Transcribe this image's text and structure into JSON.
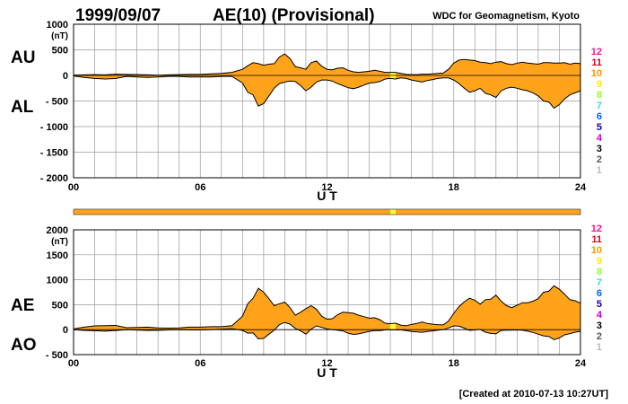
{
  "header": {
    "date": "1999/09/07",
    "title": "AE(10) (Provisional)",
    "source": "WDC for Geomagnetism, Kyoto"
  },
  "footer": {
    "created": "[Created at 2010-07-13 10:27UT]"
  },
  "colors": {
    "fill": "#ffa31a",
    "highlight": "#ffff33",
    "grid": "#9a9a9a",
    "axis": "#000000"
  },
  "station_legend": [
    {
      "label": "12",
      "color": "#ff1493"
    },
    {
      "label": "11",
      "color": "#e0001b"
    },
    {
      "label": "10",
      "color": "#ff9900"
    },
    {
      "label": "9",
      "color": "#ffee00"
    },
    {
      "label": "8",
      "color": "#99ff33"
    },
    {
      "label": "7",
      "color": "#33dddd"
    },
    {
      "label": "6",
      "color": "#0066ff"
    },
    {
      "label": "5",
      "color": "#1a00aa"
    },
    {
      "label": "4",
      "color": "#cc00cc"
    },
    {
      "label": "3",
      "color": "#000000"
    },
    {
      "label": "2",
      "color": "#555555"
    },
    {
      "label": "1",
      "color": "#bbbbbb"
    }
  ],
  "coverage_bar": {
    "highlight_hours": [
      15.0,
      15.25
    ]
  },
  "chart_data": [
    {
      "type": "area",
      "name": "AU/AL",
      "upper_label": "AU",
      "lower_label": "AL",
      "unit": "(nT)",
      "xlabel": "U T",
      "xlim": [
        0,
        24
      ],
      "ylim": [
        -2000,
        1000
      ],
      "xticks": [
        "00",
        "06",
        "12",
        "18",
        "24"
      ],
      "yticks": [
        "1000",
        "500",
        "0",
        "- 500",
        "- 1000",
        "- 1500",
        "- 2000"
      ],
      "highlight_hours": [
        15.0,
        15.25
      ],
      "x": [
        0,
        0.5,
        1,
        1.5,
        2,
        2.5,
        3,
        3.5,
        4,
        4.5,
        5,
        5.5,
        6,
        6.5,
        7,
        7.5,
        8,
        8.25,
        8.5,
        8.75,
        9,
        9.25,
        9.5,
        9.75,
        10,
        10.25,
        10.5,
        10.75,
        11,
        11.25,
        11.5,
        11.75,
        12,
        12.25,
        12.5,
        12.75,
        13,
        13.25,
        13.5,
        13.75,
        14,
        14.25,
        14.5,
        14.75,
        15,
        15.25,
        15.5,
        15.75,
        16,
        16.25,
        16.5,
        16.75,
        17,
        17.25,
        17.5,
        17.75,
        18,
        18.25,
        18.5,
        18.75,
        19,
        19.25,
        19.5,
        19.75,
        20,
        20.25,
        20.5,
        20.75,
        21,
        21.25,
        21.5,
        21.75,
        22,
        22.25,
        22.5,
        22.75,
        23,
        23.25,
        23.5,
        23.75,
        24
      ],
      "series": [
        {
          "name": "AU",
          "values": [
            5,
            10,
            15,
            10,
            25,
            20,
            15,
            10,
            5,
            10,
            15,
            20,
            20,
            30,
            40,
            60,
            120,
            190,
            250,
            230,
            200,
            220,
            230,
            360,
            420,
            330,
            170,
            150,
            120,
            250,
            280,
            180,
            120,
            110,
            140,
            150,
            100,
            70,
            60,
            70,
            80,
            100,
            80,
            60,
            60,
            60,
            40,
            20,
            15,
            15,
            25,
            25,
            30,
            40,
            45,
            120,
            240,
            300,
            310,
            300,
            290,
            260,
            250,
            230,
            260,
            270,
            230,
            210,
            240,
            260,
            240,
            230,
            220,
            250,
            250,
            240,
            240,
            250,
            220,
            240,
            230
          ]
        },
        {
          "name": "AL",
          "values": [
            -10,
            -40,
            -60,
            -70,
            -60,
            -20,
            -30,
            -40,
            -30,
            -20,
            -20,
            -30,
            -30,
            -30,
            -20,
            -20,
            -150,
            -330,
            -380,
            -600,
            -550,
            -400,
            -250,
            -160,
            -130,
            -110,
            -120,
            -200,
            -300,
            -230,
            -130,
            -90,
            -90,
            -110,
            -160,
            -200,
            -240,
            -260,
            -230,
            -190,
            -150,
            -140,
            -120,
            -70,
            -60,
            -70,
            -50,
            -60,
            -90,
            -110,
            -130,
            -100,
            -80,
            -60,
            -50,
            -50,
            -90,
            -160,
            -250,
            -330,
            -300,
            -250,
            -350,
            -380,
            -430,
            -300,
            -250,
            -230,
            -250,
            -280,
            -300,
            -340,
            -400,
            -500,
            -520,
            -640,
            -570,
            -460,
            -380,
            -340,
            -300
          ]
        }
      ]
    },
    {
      "type": "area",
      "name": "AE/AO",
      "upper_label": "AE",
      "lower_label": "AO",
      "unit": "(nT)",
      "xlabel": "U T",
      "xlim": [
        0,
        24
      ],
      "ylim": [
        -500,
        2000
      ],
      "xticks": [
        "00",
        "06",
        "12",
        "18",
        "24"
      ],
      "yticks": [
        "2000",
        "1500",
        "1000",
        "500",
        "0",
        "- 500"
      ],
      "highlight_hours": [
        15.0,
        15.25
      ],
      "x": [
        0,
        0.5,
        1,
        1.5,
        2,
        2.5,
        3,
        3.5,
        4,
        4.5,
        5,
        5.5,
        6,
        6.5,
        7,
        7.5,
        8,
        8.25,
        8.5,
        8.75,
        9,
        9.25,
        9.5,
        9.75,
        10,
        10.25,
        10.5,
        10.75,
        11,
        11.25,
        11.5,
        11.75,
        12,
        12.25,
        12.5,
        12.75,
        13,
        13.25,
        13.5,
        13.75,
        14,
        14.25,
        14.5,
        14.75,
        15,
        15.25,
        15.5,
        15.75,
        16,
        16.25,
        16.5,
        16.75,
        17,
        17.25,
        17.5,
        17.75,
        18,
        18.25,
        18.5,
        18.75,
        19,
        19.25,
        19.5,
        19.75,
        20,
        20.25,
        20.5,
        20.75,
        21,
        21.25,
        21.5,
        21.75,
        22,
        22.25,
        22.5,
        22.75,
        23,
        23.25,
        23.5,
        23.75,
        24
      ],
      "series": [
        {
          "name": "AE",
          "values": [
            15,
            50,
            75,
            80,
            85,
            40,
            45,
            50,
            35,
            30,
            35,
            50,
            50,
            60,
            60,
            80,
            270,
            520,
            630,
            830,
            750,
            620,
            480,
            520,
            550,
            440,
            290,
            350,
            420,
            480,
            410,
            270,
            210,
            220,
            300,
            350,
            340,
            330,
            290,
            260,
            230,
            240,
            200,
            130,
            120,
            130,
            90,
            80,
            105,
            125,
            155,
            125,
            110,
            100,
            95,
            170,
            330,
            460,
            560,
            630,
            590,
            510,
            600,
            610,
            690,
            570,
            480,
            440,
            490,
            540,
            540,
            570,
            620,
            750,
            770,
            880,
            810,
            710,
            600,
            580,
            530
          ]
        },
        {
          "name": "AO",
          "values": [
            -2,
            -15,
            -22,
            -30,
            -17,
            0,
            -7,
            -15,
            -12,
            -5,
            -2,
            -5,
            -5,
            0,
            10,
            20,
            -15,
            -70,
            -65,
            -185,
            -175,
            -90,
            -10,
            100,
            145,
            110,
            25,
            -25,
            -90,
            10,
            75,
            45,
            15,
            0,
            -10,
            -25,
            -70,
            -95,
            -85,
            -60,
            -35,
            -20,
            -20,
            -5,
            0,
            -5,
            -5,
            -20,
            -37,
            -47,
            -52,
            -37,
            -25,
            -10,
            -2,
            35,
            75,
            70,
            30,
            -15,
            -5,
            5,
            -50,
            -75,
            -85,
            -15,
            -10,
            -10,
            -5,
            -10,
            -30,
            -55,
            -90,
            -125,
            -135,
            -200,
            -165,
            -105,
            -80,
            -50,
            -35
          ]
        }
      ]
    }
  ]
}
